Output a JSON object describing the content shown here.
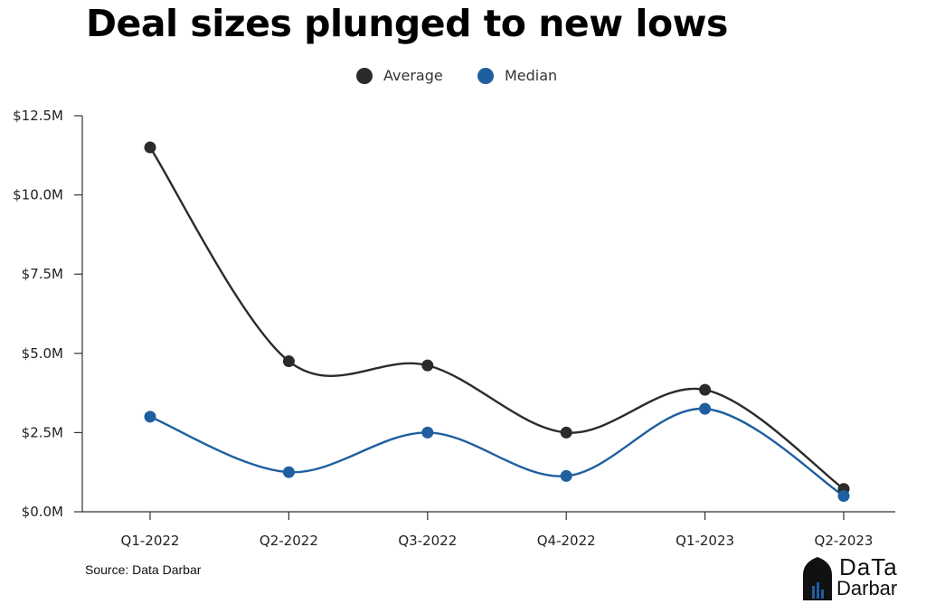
{
  "title": "Deal sizes plunged to new lows",
  "source": "Source: Data Darbar",
  "logo": {
    "line1": "DaTa",
    "line2": "Darbar"
  },
  "colors": {
    "average": "#2b2b2b",
    "median": "#1f5fa0",
    "axis": "#333333"
  },
  "chart_data": {
    "type": "line",
    "categories": [
      "Q1-2022",
      "Q2-2022",
      "Q3-2022",
      "Q4-2022",
      "Q1-2023",
      "Q2-2023"
    ],
    "series": [
      {
        "name": "Average",
        "values": [
          11.5,
          4.75,
          4.62,
          2.5,
          3.85,
          0.72
        ]
      },
      {
        "name": "Median",
        "values": [
          3.0,
          1.25,
          2.5,
          1.13,
          3.25,
          0.5
        ]
      }
    ],
    "ylim": [
      0,
      12.5
    ],
    "yticks": [
      0,
      2.5,
      5.0,
      7.5,
      10.0,
      12.5
    ],
    "ytick_labels": [
      "$0.0M",
      "$2.5M",
      "$5.0M",
      "$7.5M",
      "$10.0M",
      "$12.5M"
    ],
    "legend_position": "top-center",
    "grid": false,
    "curve": "smooth"
  }
}
